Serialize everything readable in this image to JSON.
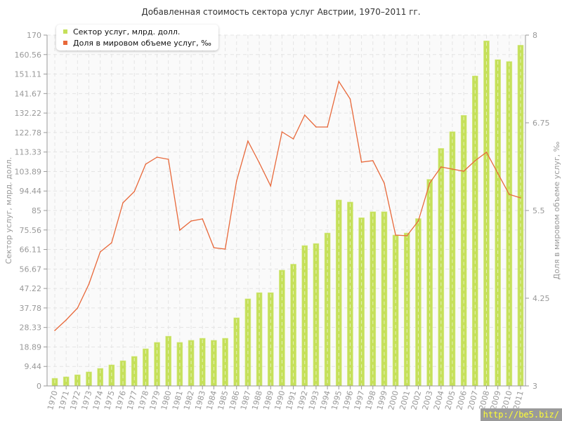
{
  "chart_data": {
    "type": "bar+line",
    "title": "Добавленная стоимость сектора услуг Австрии, 1970–2011 гг.",
    "ylabel": "Сектор услуг, млрд. долл.",
    "y2label": "Доля в мировом объеме услуг, ‰",
    "ylim": [
      0,
      170
    ],
    "y2lim": [
      3,
      8
    ],
    "yticks": [
      "0",
      "9.44",
      "18.89",
      "28.33",
      "37.78",
      "47.22",
      "56.67",
      "66.11",
      "75.56",
      "85",
      "94.44",
      "103.89",
      "113.33",
      "122.78",
      "132.22",
      "141.67",
      "151.11",
      "160.56",
      "170"
    ],
    "y2ticks": [
      "3",
      "4.25",
      "5.5",
      "6.75",
      "8"
    ],
    "grid": true,
    "legend": "top-left",
    "categories": [
      "1970",
      "1971",
      "1972",
      "1973",
      "1974",
      "1975",
      "1976",
      "1977",
      "1978",
      "1979",
      "1980",
      "1981",
      "1982",
      "1983",
      "1984",
      "1985",
      "1986",
      "1987",
      "1988",
      "1989",
      "1990",
      "1991",
      "1992",
      "1993",
      "1994",
      "1995",
      "1996",
      "1997",
      "1998",
      "1999",
      "2000",
      "2001",
      "2002",
      "2003",
      "2004",
      "2005",
      "2006",
      "2007",
      "2008",
      "2009",
      "2010",
      "2011"
    ],
    "series": [
      {
        "name": "Сектор услуг, млрд. долл.",
        "type": "bar",
        "axis": "left",
        "color": "#c5e05a",
        "values": [
          3.7,
          4.4,
          5.4,
          6.8,
          8.5,
          10.2,
          12.2,
          14.3,
          18,
          21.1,
          24.1,
          21.1,
          22.1,
          23.1,
          22.1,
          23.1,
          33,
          42.2,
          45.2,
          45.2,
          56.1,
          59,
          68,
          69,
          74.1,
          90.1,
          89.1,
          81.5,
          84.4,
          84.4,
          73.1,
          74.1,
          81.1,
          100.1,
          115.1,
          123.2,
          131.1,
          150.2,
          167.2,
          158.1,
          157.2,
          165.1
        ]
      },
      {
        "name": "Доля в мировом объеме услуг, ‰",
        "type": "line",
        "axis": "right",
        "color": "#e8683a",
        "values": [
          3.79,
          3.94,
          4.11,
          4.45,
          4.91,
          5.04,
          5.61,
          5.77,
          6.16,
          6.26,
          6.23,
          5.22,
          5.35,
          5.38,
          4.97,
          4.95,
          5.92,
          6.49,
          6.18,
          5.85,
          6.62,
          6.52,
          6.86,
          6.69,
          6.69,
          7.34,
          7.09,
          6.19,
          6.21,
          5.89,
          5.15,
          5.14,
          5.35,
          5.89,
          6.12,
          6.09,
          6.06,
          6.21,
          6.33,
          6.03,
          5.73,
          5.68
        ]
      }
    ]
  },
  "watermark": "http://be5.biz/"
}
